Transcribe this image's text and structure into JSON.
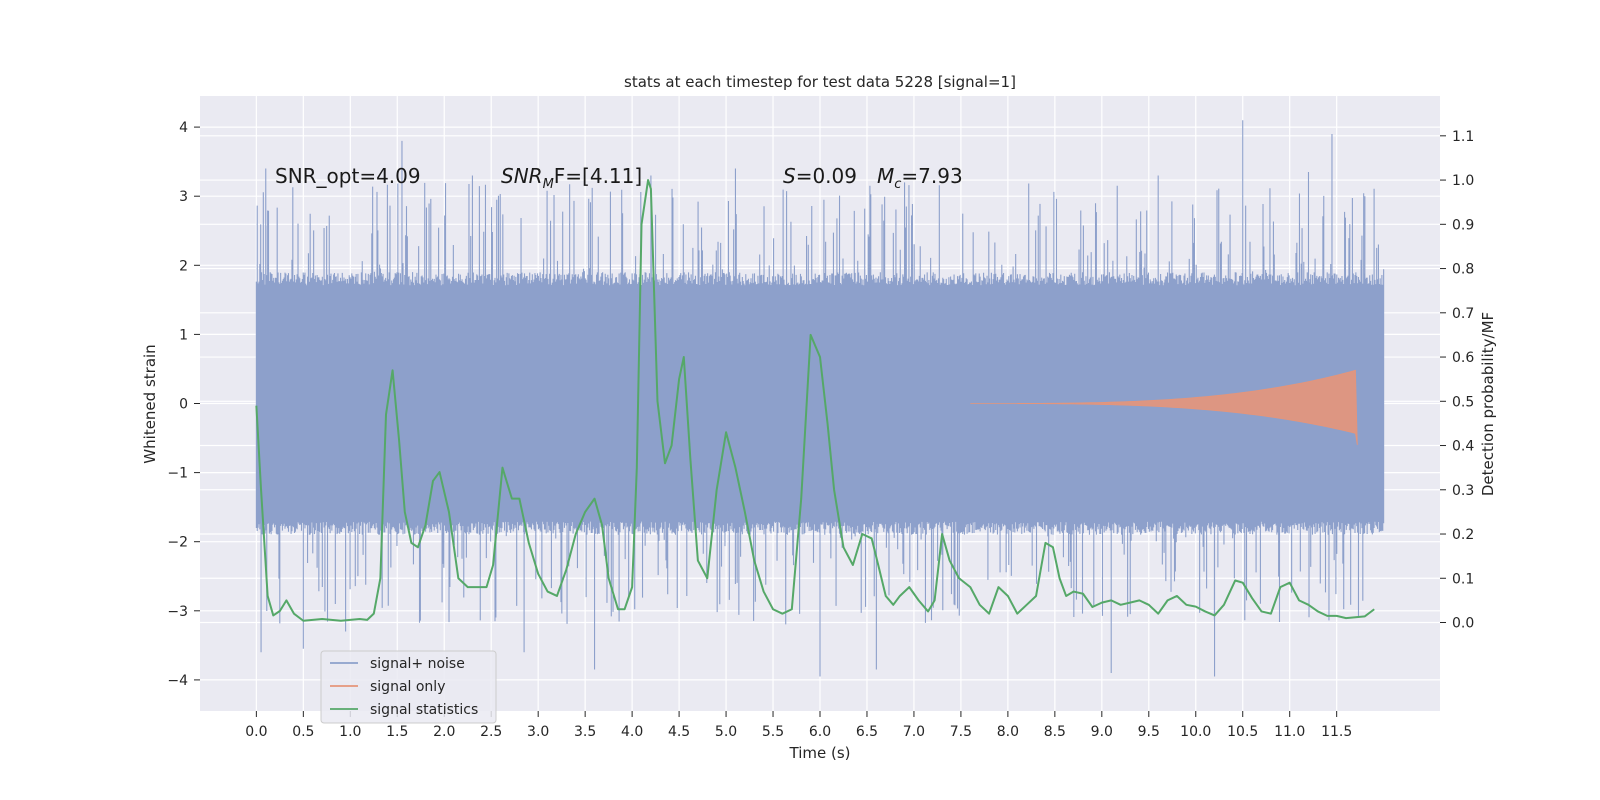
{
  "chart_data": {
    "type": "line",
    "title": "stats at each timestep for test data 5228 [signal=1]",
    "xlabel": "Time (s)",
    "ylabel_left": "Whitened strain",
    "ylabel_right": "Detection probability/MF",
    "xlim": [
      -0.6,
      12.6
    ],
    "ylim_left": [
      -4.45,
      4.45
    ],
    "ylim_right": [
      -0.2,
      1.19
    ],
    "x_ticks": [
      0.0,
      0.5,
      1.0,
      1.5,
      2.0,
      2.5,
      3.0,
      3.5,
      4.0,
      4.5,
      5.0,
      5.5,
      6.0,
      6.5,
      7.0,
      7.5,
      8.0,
      8.5,
      9.0,
      9.5,
      10.0,
      10.5,
      11.0,
      11.5
    ],
    "x_tick_labels": [
      "0.0",
      "0.5",
      "1.0",
      "1.5",
      "2.0",
      "2.5",
      "3.0",
      "3.5",
      "4.0",
      "4.5",
      "5.0",
      "5.5",
      "6.0",
      "6.5",
      "7.0",
      "7.5",
      "8.0",
      "8.5",
      "9.0",
      "9.5",
      "10.0",
      "10.5",
      "11.0",
      "11.5"
    ],
    "y_left_ticks": [
      4,
      3,
      2,
      1,
      0,
      -1,
      -2,
      -3,
      -4
    ],
    "y_left_tick_labels": [
      "4",
      "3",
      "2",
      "1",
      "0",
      "−1",
      "−2",
      "−3",
      "−4"
    ],
    "y_right_ticks": [
      1.1,
      1.0,
      0.9,
      0.8,
      0.7,
      0.6,
      0.5,
      0.4,
      0.3,
      0.2,
      0.1,
      0.0
    ],
    "y_right_tick_labels": [
      "1.1",
      "1.0",
      "0.9",
      "0.8",
      "0.7",
      "0.6",
      "0.5",
      "0.4",
      "0.3",
      "0.2",
      "0.1",
      "0.0"
    ],
    "annotations": {
      "snr_opt": "SNR_opt=4.09",
      "snr_mf_name": "SNR",
      "snr_mf_sub": "M",
      "snr_mf_rest": "F=[4.11]",
      "s_name": "S",
      "s_value": "=0.09",
      "mc_name": "M",
      "mc_sub": "c",
      "mc_value": "=7.93"
    },
    "legend": {
      "location": "lower-left",
      "entries": [
        "signal+ noise",
        "signal only",
        "signal statistics"
      ]
    },
    "series": [
      {
        "name": "signal+ noise",
        "axis": "left",
        "color": "#8da0cb",
        "kind": "noise",
        "t_range": [
          0.0,
          12.0
        ],
        "core_amplitude": 1.9,
        "max_abs": 4.1,
        "spike_peaks": [
          [
            0.05,
            -3.6
          ],
          [
            0.1,
            3.4
          ],
          [
            0.5,
            -3.55
          ],
          [
            0.95,
            -3.3
          ],
          [
            1.55,
            3.8
          ],
          [
            2.3,
            3.3
          ],
          [
            2.85,
            -3.6
          ],
          [
            3.6,
            -3.85
          ],
          [
            4.2,
            3.3
          ],
          [
            5.1,
            3.4
          ],
          [
            6.0,
            -3.95
          ],
          [
            6.6,
            -3.85
          ],
          [
            6.9,
            3.2
          ],
          [
            9.1,
            -3.9
          ],
          [
            9.6,
            3.3
          ],
          [
            10.2,
            -3.95
          ],
          [
            10.5,
            4.1
          ],
          [
            11.2,
            3.35
          ],
          [
            11.45,
            3.9
          ],
          [
            11.8,
            3.0
          ]
        ]
      },
      {
        "name": "signal only",
        "axis": "left",
        "color": "#e5957a",
        "kind": "chirp",
        "t_start": 7.6,
        "t_end": 11.7,
        "end_amplitude": 0.48
      },
      {
        "name": "signal statistics",
        "axis": "right",
        "color": "#55a868",
        "x": [
          0.0,
          0.05,
          0.12,
          0.18,
          0.25,
          0.32,
          0.4,
          0.5,
          0.6,
          0.7,
          0.8,
          0.9,
          1.0,
          1.1,
          1.18,
          1.25,
          1.32,
          1.38,
          1.45,
          1.52,
          1.58,
          1.65,
          1.72,
          1.8,
          1.88,
          1.95,
          2.05,
          2.15,
          2.25,
          2.35,
          2.45,
          2.52,
          2.62,
          2.72,
          2.8,
          2.9,
          3.0,
          3.1,
          3.2,
          3.3,
          3.4,
          3.5,
          3.6,
          3.68,
          3.75,
          3.85,
          3.92,
          4.0,
          4.05,
          4.1,
          4.17,
          4.2,
          4.27,
          4.35,
          4.42,
          4.5,
          4.55,
          4.62,
          4.7,
          4.8,
          4.9,
          5.0,
          5.1,
          5.2,
          5.3,
          5.4,
          5.5,
          5.6,
          5.7,
          5.8,
          5.9,
          6.0,
          6.08,
          6.15,
          6.25,
          6.35,
          6.45,
          6.55,
          6.62,
          6.7,
          6.78,
          6.85,
          6.95,
          7.05,
          7.15,
          7.22,
          7.3,
          7.38,
          7.48,
          7.6,
          7.7,
          7.8,
          7.9,
          8.0,
          8.1,
          8.2,
          8.3,
          8.4,
          8.48,
          8.55,
          8.62,
          8.7,
          8.8,
          8.9,
          9.0,
          9.1,
          9.2,
          9.3,
          9.4,
          9.5,
          9.6,
          9.7,
          9.8,
          9.9,
          10.0,
          10.1,
          10.2,
          10.3,
          10.42,
          10.5,
          10.6,
          10.7,
          10.8,
          10.9,
          11.0,
          11.1,
          11.2,
          11.3,
          11.4,
          11.5,
          11.6,
          11.7,
          11.8,
          11.9
        ],
        "values": [
          0.49,
          0.3,
          0.06,
          0.016,
          0.026,
          0.05,
          0.02,
          0.004,
          0.006,
          0.008,
          0.006,
          0.004,
          0.006,
          0.008,
          0.006,
          0.02,
          0.1,
          0.47,
          0.57,
          0.41,
          0.25,
          0.18,
          0.17,
          0.22,
          0.32,
          0.34,
          0.25,
          0.1,
          0.08,
          0.08,
          0.08,
          0.13,
          0.35,
          0.28,
          0.28,
          0.18,
          0.11,
          0.07,
          0.06,
          0.12,
          0.2,
          0.25,
          0.28,
          0.22,
          0.1,
          0.03,
          0.03,
          0.08,
          0.35,
          0.9,
          1.0,
          0.98,
          0.5,
          0.36,
          0.4,
          0.55,
          0.6,
          0.37,
          0.14,
          0.1,
          0.3,
          0.43,
          0.35,
          0.25,
          0.14,
          0.07,
          0.03,
          0.02,
          0.03,
          0.28,
          0.65,
          0.6,
          0.45,
          0.3,
          0.17,
          0.13,
          0.2,
          0.19,
          0.13,
          0.06,
          0.04,
          0.06,
          0.08,
          0.05,
          0.025,
          0.05,
          0.2,
          0.14,
          0.1,
          0.08,
          0.04,
          0.02,
          0.08,
          0.06,
          0.02,
          0.04,
          0.06,
          0.18,
          0.17,
          0.1,
          0.06,
          0.07,
          0.065,
          0.035,
          0.045,
          0.05,
          0.04,
          0.045,
          0.05,
          0.04,
          0.02,
          0.05,
          0.06,
          0.04,
          0.036,
          0.025,
          0.016,
          0.04,
          0.095,
          0.09,
          0.055,
          0.025,
          0.02,
          0.08,
          0.09,
          0.05,
          0.04,
          0.025,
          0.015,
          0.015,
          0.01,
          0.012,
          0.014,
          0.03
        ]
      }
    ]
  }
}
